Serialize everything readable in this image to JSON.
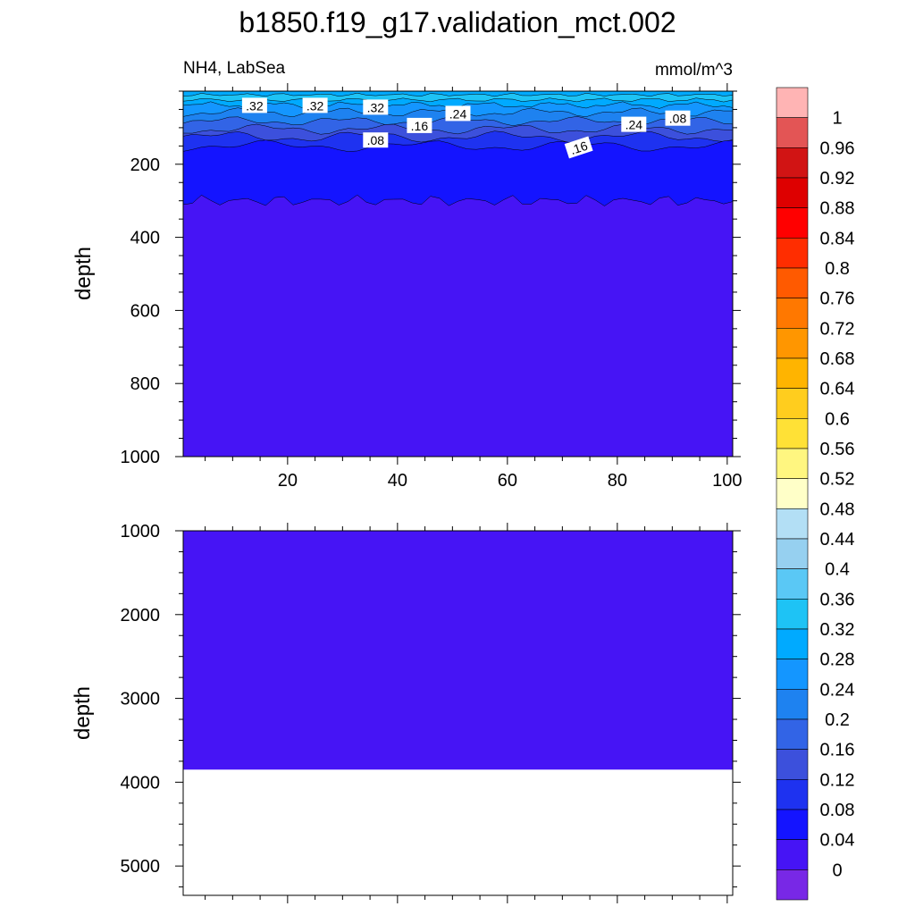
{
  "title": "b1850.f19_g17.validation_mct.002",
  "panel_left_label": "NH4, LabSea",
  "panel_right_label": "mmol/m^3",
  "chart_data": [
    {
      "type": "heatmap",
      "subtype": "filled-contour",
      "panel": "upper",
      "variable": "NH4",
      "region": "LabSea",
      "units": "mmol/m^3",
      "ylabel": "depth",
      "xlabel": "",
      "xlim": [
        1,
        101
      ],
      "ylim": [
        1000,
        0
      ],
      "y_reversed": true,
      "x_ticks": [
        20,
        40,
        60,
        80,
        100
      ],
      "y_ticks": [
        200,
        400,
        600,
        800,
        1000
      ],
      "contour_labels": [
        ".32",
        ".32",
        ".32",
        ".16",
        ".24",
        ".08",
        ".16",
        ".24",
        ".08"
      ],
      "field_summary": [
        {
          "depth_range": [
            0,
            30
          ],
          "value_range": [
            0.28,
            0.36
          ]
        },
        {
          "depth_range": [
            30,
            120
          ],
          "value_range": [
            0.12,
            0.28
          ]
        },
        {
          "depth_range": [
            120,
            300
          ],
          "value_range": [
            0.04,
            0.12
          ]
        },
        {
          "depth_range": [
            300,
            1000
          ],
          "value_range": [
            0,
            0.04
          ]
        }
      ]
    },
    {
      "type": "heatmap",
      "subtype": "filled-contour",
      "panel": "lower",
      "variable": "NH4",
      "region": "LabSea",
      "units": "mmol/m^3",
      "ylabel": "depth",
      "xlabel": "",
      "xlim": [
        1,
        101
      ],
      "ylim": [
        5350,
        1000
      ],
      "y_reversed": true,
      "x_ticks": [
        20,
        40,
        60,
        80,
        100
      ],
      "y_ticks": [
        1000,
        2000,
        3000,
        4000,
        5000
      ],
      "field_summary": [
        {
          "depth_range": [
            1000,
            3850
          ],
          "value_range": [
            0,
            0.04
          ]
        },
        {
          "depth_range": [
            3850,
            5350
          ],
          "value_range": null
        }
      ]
    }
  ],
  "colorbar": {
    "labels": [
      "1",
      "0.96",
      "0.92",
      "0.88",
      "0.84",
      "0.8",
      "0.76",
      "0.72",
      "0.68",
      "0.64",
      "0.6",
      "0.56",
      "0.52",
      "0.48",
      "0.44",
      "0.4",
      "0.36",
      "0.32",
      "0.28",
      "0.24",
      "0.2",
      "0.16",
      "0.12",
      "0.08",
      "0.04",
      "0"
    ],
    "colors": [
      "#ffb4b4",
      "#e35555",
      "#d11414",
      "#de0000",
      "#ff0000",
      "#ff2d00",
      "#ff5a00",
      "#ff7800",
      "#ff9600",
      "#ffb400",
      "#ffcd1e",
      "#ffe136",
      "#fff680",
      "#ffffc8",
      "#b3dff5",
      "#96d0f0",
      "#5ac8f5",
      "#1ec3f5",
      "#00aaff",
      "#1496ff",
      "#1e82f0",
      "#3264e6",
      "#3c50dc",
      "#1e32f0",
      "#1414ff",
      "#4614f5",
      "#7828e6"
    ]
  }
}
